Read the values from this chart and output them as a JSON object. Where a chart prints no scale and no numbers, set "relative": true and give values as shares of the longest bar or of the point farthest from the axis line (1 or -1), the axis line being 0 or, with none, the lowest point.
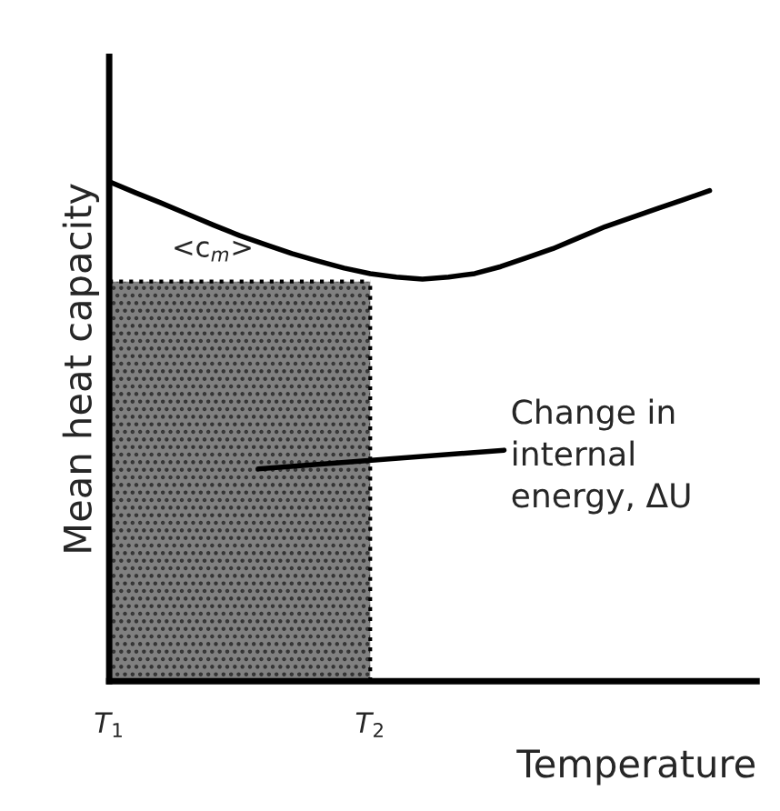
{
  "chart_data": {
    "type": "line",
    "relative": true,
    "xlabel": "Temperature",
    "ylabel": "Mean heat capacity",
    "categories": [
      "T$_{1}$",
      null,
      null,
      null,
      null,
      null,
      null,
      null,
      null,
      null,
      "T$_{2}$",
      null,
      null,
      null,
      null,
      null,
      null,
      null,
      null,
      null,
      null,
      null,
      null,
      null
    ],
    "series": [
      {
        "color": "#000000",
        "line_style": "solid",
        "values": [
          1.0,
          0.978,
          0.957,
          0.935,
          0.913,
          0.892,
          0.874,
          0.856,
          0.841,
          0.827,
          0.816,
          0.809,
          0.805,
          0.809,
          0.816,
          0.83,
          0.848,
          0.866,
          0.888,
          0.91,
          0.928,
          0.946,
          0.964,
          0.982
        ]
      },
      {
        "type": "area",
        "color": "#808080",
        "line_style": "dotted",
        "values": [
          0.8,
          0.8,
          0.8,
          0.8,
          0.8,
          0.8,
          0.8,
          0.8,
          0.8,
          0.8,
          0.8,
          null,
          null,
          null,
          null,
          null,
          null,
          null,
          null,
          null,
          null,
          null,
          null,
          null
        ]
      }
    ],
    "annotations": [
      "<c$_{m}$>",
      "Change in\ninternal\nenergy, ΔU"
    ]
  }
}
